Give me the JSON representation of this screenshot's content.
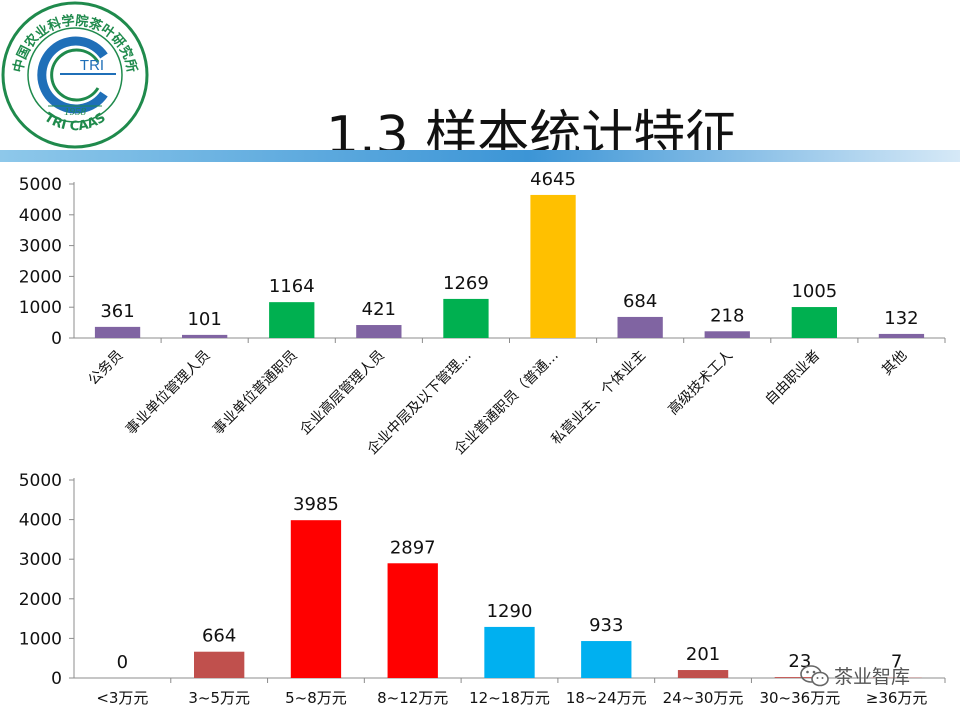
{
  "logo": {
    "arc_text": "中国农业科学院茶叶研究所",
    "center_text": "TRI",
    "year": "1958",
    "bottom_text": "TRI CAAS"
  },
  "title": "1.3 样本统计特征",
  "watermark": {
    "text": "茶业智库",
    "icon": "wechat-icon"
  },
  "chart_data": [
    {
      "type": "bar",
      "title": "",
      "xlabel": "",
      "ylabel": "",
      "ylim": [
        0,
        5000
      ],
      "yticks": [
        0,
        1000,
        2000,
        3000,
        4000,
        5000
      ],
      "grid": false,
      "categories": [
        "公务员",
        "事业单位管理人员",
        "事业单位普通职员",
        "企业高层管理人员",
        "企业中层及以下管理…",
        "企业普通职员（普通…",
        "私营业主、个体业主",
        "高级技术工人",
        "自由职业者",
        "其他"
      ],
      "values": [
        361,
        101,
        1164,
        421,
        1269,
        4645,
        684,
        218,
        1005,
        132
      ],
      "colors": [
        "#8064a2",
        "#8064a2",
        "#00b050",
        "#8064a2",
        "#00b050",
        "#ffc000",
        "#8064a2",
        "#8064a2",
        "#00b050",
        "#8064a2"
      ],
      "data_labels": [
        "361",
        "101",
        "1164",
        "421",
        "1269",
        "4645",
        "684",
        "218",
        "1005",
        "132"
      ]
    },
    {
      "type": "bar",
      "title": "",
      "xlabel": "",
      "ylabel": "",
      "ylim": [
        0,
        5000
      ],
      "yticks": [
        0,
        1000,
        2000,
        3000,
        4000,
        5000
      ],
      "grid": false,
      "categories": [
        "<3万元",
        "3~5万元",
        "5~8万元",
        "8~12万元",
        "12~18万元",
        "18~24万元",
        "24~30万元",
        "30~36万元",
        "≥36万元"
      ],
      "values": [
        0,
        664,
        3985,
        2897,
        1290,
        933,
        201,
        23,
        7
      ],
      "colors": [
        "#c0504d",
        "#c0504d",
        "#ff0000",
        "#ff0000",
        "#00b0f0",
        "#00b0f0",
        "#c0504d",
        "#c0504d",
        "#c0504d"
      ],
      "data_labels": [
        "0",
        "664",
        "3985",
        "2897",
        "1290",
        "933",
        "201",
        "23",
        "7"
      ]
    }
  ]
}
